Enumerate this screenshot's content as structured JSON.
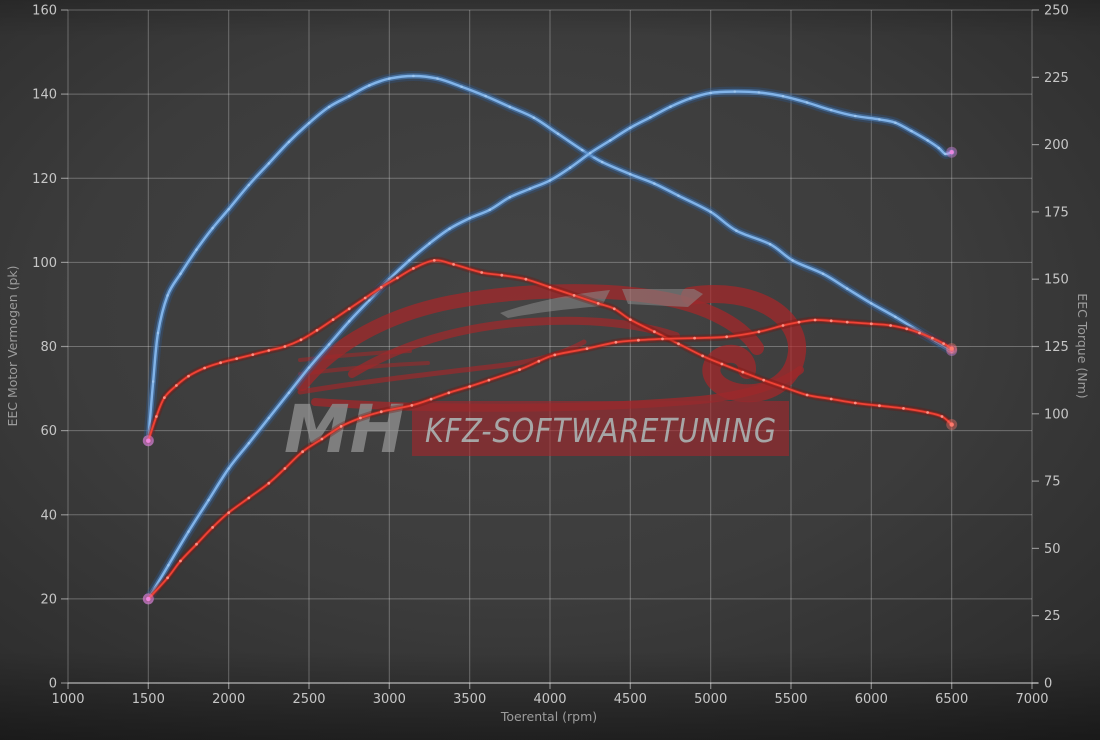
{
  "chart_data": {
    "type": "line",
    "title": "",
    "xlabel": "Toerental (rpm)",
    "ylabel_left": "EEC Motor Vermogen (pk)",
    "ylabel_right": "EEC Torque (Nm)",
    "xlim": [
      1000,
      7000
    ],
    "ylim_left": [
      0,
      160
    ],
    "ylim_right": [
      0,
      250
    ],
    "x_ticks": [
      1000,
      1500,
      2000,
      2500,
      3000,
      3500,
      4000,
      4500,
      5000,
      5500,
      6000,
      6500,
      7000
    ],
    "y_left_ticks": [
      0,
      20,
      40,
      60,
      80,
      100,
      120,
      140,
      160
    ],
    "y_right_ticks": [
      0,
      25,
      50,
      75,
      100,
      125,
      150,
      175,
      200,
      225,
      250
    ],
    "grid": true,
    "legend": "none",
    "series": [
      {
        "name": "torque-tuned-blue",
        "axis": "right",
        "unit": "Nm",
        "weight": "thick",
        "core": "#82b4e9",
        "mid": "#4e86c6",
        "glow": "#2c5a96",
        "dot": "#bcd9f6",
        "start_glow": "#ee86df",
        "end_glow": "#ee86df",
        "peak": {
          "rpm": 3150,
          "value": 225.5
        },
        "points": [
          [
            1500,
            90
          ],
          [
            1530,
            112
          ],
          [
            1560,
            130
          ],
          [
            1620,
            144
          ],
          [
            1700,
            152
          ],
          [
            1800,
            161
          ],
          [
            1900,
            169
          ],
          [
            2000,
            176
          ],
          [
            2125,
            185
          ],
          [
            2250,
            193
          ],
          [
            2375,
            201
          ],
          [
            2500,
            208
          ],
          [
            2625,
            214
          ],
          [
            2750,
            218
          ],
          [
            2875,
            222
          ],
          [
            3000,
            224.5
          ],
          [
            3150,
            225.5
          ],
          [
            3300,
            224.5
          ],
          [
            3450,
            221.5
          ],
          [
            3600,
            218
          ],
          [
            3750,
            214
          ],
          [
            3900,
            210
          ],
          [
            4050,
            204
          ],
          [
            4200,
            198
          ],
          [
            4325,
            193.5
          ],
          [
            4500,
            189
          ],
          [
            4650,
            185.5
          ],
          [
            4800,
            181
          ],
          [
            5000,
            175
          ],
          [
            5160,
            168
          ],
          [
            5370,
            163
          ],
          [
            5510,
            157
          ],
          [
            5700,
            152
          ],
          [
            5850,
            146.5
          ],
          [
            6000,
            141
          ],
          [
            6150,
            136
          ],
          [
            6300,
            130.5
          ],
          [
            6400,
            127
          ],
          [
            6500,
            123.5
          ]
        ]
      },
      {
        "name": "power-tuned-blue",
        "axis": "left",
        "unit": "pk",
        "weight": "thick",
        "core": "#82b4e9",
        "mid": "#4e86c6",
        "glow": "#2c5a96",
        "dot": "#bcd9f6",
        "start_glow": "#ee86df",
        "end_glow": "#ee86df",
        "peak": {
          "rpm": 5150,
          "value": 140.6
        },
        "points": [
          [
            1500,
            20
          ],
          [
            1625,
            28
          ],
          [
            1750,
            36
          ],
          [
            1875,
            43.5
          ],
          [
            2000,
            51
          ],
          [
            2125,
            57
          ],
          [
            2250,
            63
          ],
          [
            2375,
            69
          ],
          [
            2500,
            75
          ],
          [
            2625,
            80.5
          ],
          [
            2750,
            86
          ],
          [
            2875,
            91
          ],
          [
            3000,
            96
          ],
          [
            3125,
            100.5
          ],
          [
            3250,
            104.5
          ],
          [
            3375,
            108
          ],
          [
            3500,
            110.5
          ],
          [
            3625,
            112.5
          ],
          [
            3750,
            115.5
          ],
          [
            3875,
            117.5
          ],
          [
            4000,
            119.5
          ],
          [
            4125,
            122.5
          ],
          [
            4250,
            126
          ],
          [
            4375,
            129
          ],
          [
            4500,
            132
          ],
          [
            4625,
            134.5
          ],
          [
            4750,
            137
          ],
          [
            4875,
            139
          ],
          [
            5000,
            140.3
          ],
          [
            5150,
            140.6
          ],
          [
            5300,
            140.4
          ],
          [
            5450,
            139.5
          ],
          [
            5600,
            138
          ],
          [
            5750,
            136.2
          ],
          [
            5900,
            134.8
          ],
          [
            6050,
            134
          ],
          [
            6150,
            133.2
          ],
          [
            6250,
            131.2
          ],
          [
            6350,
            129
          ],
          [
            6420,
            127.2
          ],
          [
            6460,
            125.8
          ],
          [
            6500,
            126.2
          ]
        ]
      },
      {
        "name": "torque-stock-red",
        "axis": "right",
        "unit": "Nm",
        "weight": "thin",
        "core": "#ef4336",
        "mid": "#b7271d",
        "glow": "#7a120c",
        "dot": "#ff9d92",
        "start_glow": "#ee86df",
        "end_glow": "#ff7a6e",
        "peak": {
          "rpm": 3280,
          "value": 157
        },
        "points": [
          [
            1500,
            90
          ],
          [
            1550,
            99
          ],
          [
            1600,
            106
          ],
          [
            1675,
            110.5
          ],
          [
            1750,
            114
          ],
          [
            1850,
            117
          ],
          [
            1950,
            119
          ],
          [
            2050,
            120.5
          ],
          [
            2150,
            122
          ],
          [
            2250,
            123.5
          ],
          [
            2350,
            125
          ],
          [
            2450,
            127.5
          ],
          [
            2550,
            131
          ],
          [
            2650,
            135
          ],
          [
            2750,
            139
          ],
          [
            2850,
            143
          ],
          [
            2950,
            147
          ],
          [
            3050,
            150.5
          ],
          [
            3150,
            154
          ],
          [
            3280,
            157
          ],
          [
            3400,
            155.5
          ],
          [
            3575,
            152.5
          ],
          [
            3700,
            151.5
          ],
          [
            3850,
            150
          ],
          [
            4000,
            147
          ],
          [
            4150,
            144
          ],
          [
            4300,
            141
          ],
          [
            4400,
            139
          ],
          [
            4500,
            135
          ],
          [
            4650,
            130.5
          ],
          [
            4800,
            126
          ],
          [
            4950,
            121.5
          ],
          [
            5070,
            118.5
          ],
          [
            5200,
            115.5
          ],
          [
            5330,
            112.5
          ],
          [
            5450,
            110
          ],
          [
            5600,
            107
          ],
          [
            5750,
            105.5
          ],
          [
            5900,
            104
          ],
          [
            6050,
            103
          ],
          [
            6200,
            102
          ],
          [
            6350,
            100.5
          ],
          [
            6440,
            99
          ],
          [
            6500,
            96
          ]
        ]
      },
      {
        "name": "power-stock-red",
        "axis": "left",
        "unit": "pk",
        "weight": "thin",
        "core": "#ef4336",
        "mid": "#b7271d",
        "glow": "#7a120c",
        "dot": "#ff9d92",
        "start_glow": "#ee86df",
        "end_glow": "#ff7a6e",
        "peak": {
          "rpm": 5650,
          "value": 86.3
        },
        "points": [
          [
            1500,
            20
          ],
          [
            1620,
            25
          ],
          [
            1700,
            29
          ],
          [
            1800,
            33
          ],
          [
            1900,
            37
          ],
          [
            2000,
            40.5
          ],
          [
            2125,
            44
          ],
          [
            2250,
            47.5
          ],
          [
            2350,
            51
          ],
          [
            2460,
            55
          ],
          [
            2580,
            58
          ],
          [
            2700,
            61
          ],
          [
            2820,
            63
          ],
          [
            2950,
            64.5
          ],
          [
            3140,
            66
          ],
          [
            3260,
            67.5
          ],
          [
            3370,
            69
          ],
          [
            3500,
            70.5
          ],
          [
            3620,
            72
          ],
          [
            3810,
            74.5
          ],
          [
            3930,
            76.5
          ],
          [
            4030,
            78
          ],
          [
            4230,
            79.5
          ],
          [
            4410,
            81
          ],
          [
            4550,
            81.5
          ],
          [
            4700,
            81.8
          ],
          [
            4900,
            82
          ],
          [
            5100,
            82.3
          ],
          [
            5300,
            83.5
          ],
          [
            5450,
            85
          ],
          [
            5550,
            85.8
          ],
          [
            5650,
            86.3
          ],
          [
            5750,
            86.1
          ],
          [
            5850,
            85.8
          ],
          [
            6000,
            85.4
          ],
          [
            6120,
            85
          ],
          [
            6220,
            84.2
          ],
          [
            6300,
            83.2
          ],
          [
            6380,
            82
          ],
          [
            6450,
            80.7
          ],
          [
            6500,
            79.5
          ]
        ]
      }
    ]
  },
  "watermark": {
    "mh": "MH",
    "banner": "KFZ-SOFTWARETUNING"
  },
  "palette": {
    "background_center": "#444444",
    "background_edge": "#242424",
    "grid_line": "#6f6f6f",
    "tick_label": "#c6c6c6",
    "axis_title": "#9c9c9c",
    "blue_curve": "#82b4e9",
    "red_curve": "#ef4336",
    "endpoint_glow": "#ee86df",
    "watermark_red": "#b22427",
    "watermark_gray": "#9a9a9a",
    "banner_red": "#a8262b",
    "banner_text": "#bdbdbd"
  }
}
